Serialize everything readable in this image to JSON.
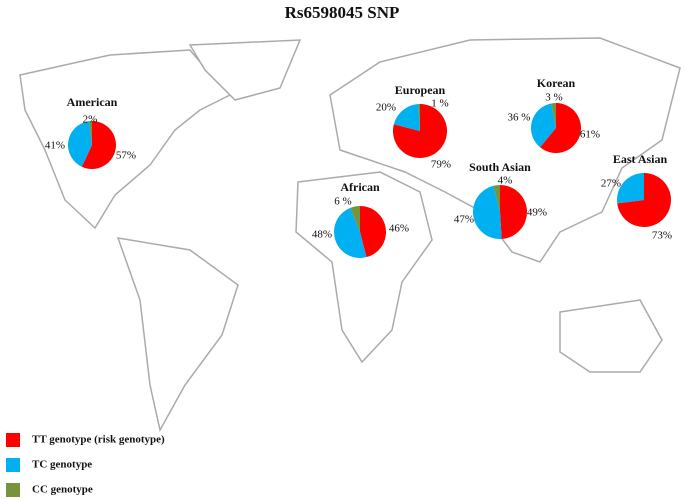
{
  "chart_data": {
    "type": "pie",
    "title": "Rs6598045 SNP",
    "legend": [
      {
        "name": "TT genotype (risk genotype)",
        "color": "#ff0000"
      },
      {
        "name": "TC genotype",
        "color": "#00b0f0"
      },
      {
        "name": "CC genotype",
        "color": "#77933c"
      }
    ],
    "pies": [
      {
        "title": "American",
        "values": [
          57,
          41,
          2
        ],
        "value_labels": [
          "57%",
          "41%",
          "2%"
        ]
      },
      {
        "title": "European",
        "values": [
          79,
          20,
          1
        ],
        "value_labels": [
          "79%",
          "20%",
          "1 %"
        ]
      },
      {
        "title": "Korean",
        "values": [
          61,
          36,
          3
        ],
        "value_labels": [
          "61%",
          "36 %",
          "3 %"
        ]
      },
      {
        "title": "East Asian",
        "values": [
          73,
          27
        ],
        "value_labels": [
          "73%",
          "27%"
        ]
      },
      {
        "title": "African",
        "values": [
          46,
          48,
          6
        ],
        "value_labels": [
          "46%",
          "48%",
          "6 %"
        ]
      },
      {
        "title": "South Asian",
        "values": [
          49,
          47,
          4
        ],
        "value_labels": [
          "49%",
          "47%",
          "4%"
        ]
      }
    ]
  }
}
